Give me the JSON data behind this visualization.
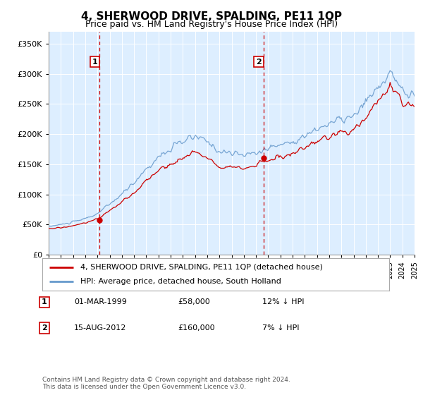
{
  "title": "4, SHERWOOD DRIVE, SPALDING, PE11 1QP",
  "subtitle": "Price paid vs. HM Land Registry's House Price Index (HPI)",
  "title_fontsize": 11,
  "subtitle_fontsize": 9,
  "background_color": "#ffffff",
  "plot_bg_color": "#ddeeff",
  "grid_color": "#cccccc",
  "hpi_color": "#6699cc",
  "price_color": "#cc0000",
  "annotation_color": "#cc0000",
  "ylim": [
    0,
    370000
  ],
  "yticks": [
    0,
    50000,
    100000,
    150000,
    200000,
    250000,
    300000,
    350000
  ],
  "ytick_labels": [
    "£0",
    "£50K",
    "£100K",
    "£150K",
    "£200K",
    "£250K",
    "£300K",
    "£350K"
  ],
  "sale1_date": 1999.17,
  "sale1_price": 58000,
  "sale2_date": 2012.62,
  "sale2_price": 160000,
  "legend_line1": "4, SHERWOOD DRIVE, SPALDING, PE11 1QP (detached house)",
  "legend_line2": "HPI: Average price, detached house, South Holland",
  "note1_label": "1",
  "note1_date": "01-MAR-1999",
  "note1_price": "£58,000",
  "note1_hpi": "12% ↓ HPI",
  "note2_label": "2",
  "note2_date": "15-AUG-2012",
  "note2_price": "£160,000",
  "note2_hpi": "7% ↓ HPI",
  "footer": "Contains HM Land Registry data © Crown copyright and database right 2024.\nThis data is licensed under the Open Government Licence v3.0."
}
